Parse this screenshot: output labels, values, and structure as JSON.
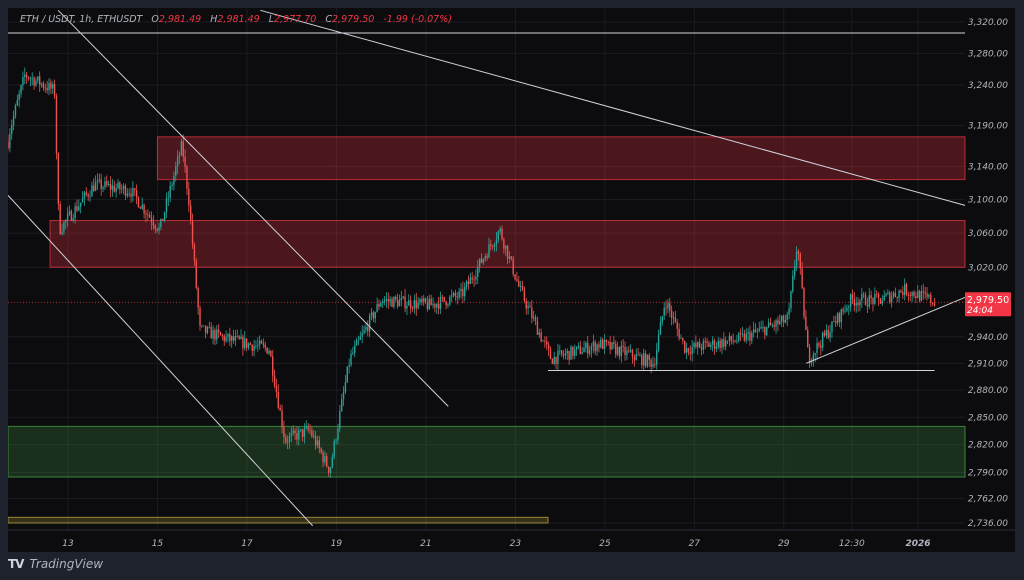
{
  "legend": {
    "symbol": "ETH / USDT, 1h, ETHUSDT",
    "open_label": "O",
    "open": "2,981.49",
    "high_label": "H",
    "high": "2,981.49",
    "low_label": "L",
    "low": "2,977.70",
    "close_label": "C",
    "close": "2,979.50",
    "change": "-1.99 (-0.07%)"
  },
  "price_badge": {
    "price": "2,979.50",
    "countdown": "24:04"
  },
  "brand": "TradingView",
  "colors": {
    "up": "#26a69a",
    "down": "#ef5350",
    "badge": "#f23645",
    "supply_zone": "#f23645",
    "demand_zone": "#4caf50",
    "drawing": "#d1d4dc"
  },
  "chart_data": {
    "type": "candlestick",
    "timeframe": "1h",
    "y_scale": "log",
    "ylim": [
      2736,
      3320
    ],
    "xlim_days_of_december": [
      11.66,
      33.05
    ],
    "current_price": 2979.5,
    "y_ticks": [
      "3,320.00",
      "3,280.00",
      "3,240.00",
      "3,190.00",
      "3,140.00",
      "3,100.00",
      "3,060.00",
      "3,020.00",
      "2,940.00",
      "2,910.00",
      "2,880.00",
      "2,850.00",
      "2,820.00",
      "2,790.00",
      "2,762.00",
      "2,736.00"
    ],
    "x_ticks": [
      {
        "label": "13",
        "day": 13
      },
      {
        "label": "15",
        "day": 15
      },
      {
        "label": "17",
        "day": 17
      },
      {
        "label": "19",
        "day": 19
      },
      {
        "label": "21",
        "day": 21
      },
      {
        "label": "23",
        "day": 23
      },
      {
        "label": "25",
        "day": 25
      },
      {
        "label": "27",
        "day": 27
      },
      {
        "label": "29",
        "day": 29
      },
      {
        "label": "12:30",
        "day": 30.52
      },
      {
        "label": "2026",
        "day": 32
      }
    ],
    "price_path": [
      [
        11.66,
        3170
      ],
      [
        11.7,
        3184
      ],
      [
        12.04,
        3253
      ],
      [
        12.7,
        3233
      ],
      [
        12.8,
        3064
      ],
      [
        13.6,
        3118
      ],
      [
        14.4,
        3111
      ],
      [
        15.05,
        3064
      ],
      [
        15.55,
        3166
      ],
      [
        15.7,
        3100
      ],
      [
        15.95,
        2948
      ],
      [
        16.6,
        2937
      ],
      [
        17.5,
        2926
      ],
      [
        17.85,
        2825
      ],
      [
        18.4,
        2836
      ],
      [
        18.85,
        2792
      ],
      [
        19.3,
        2915
      ],
      [
        20,
        2982
      ],
      [
        21.1,
        2976
      ],
      [
        21.8,
        2988
      ],
      [
        22.65,
        3064
      ],
      [
        23.1,
        2994
      ],
      [
        23.8,
        2915
      ],
      [
        24.9,
        2932
      ],
      [
        26.1,
        2910
      ],
      [
        26.35,
        2982
      ],
      [
        26.8,
        2926
      ],
      [
        28,
        2937
      ],
      [
        29.1,
        2960
      ],
      [
        29.3,
        3049
      ],
      [
        29.55,
        2915
      ],
      [
        30.5,
        2982
      ],
      [
        31.15,
        2982
      ],
      [
        31.7,
        2994
      ],
      [
        32.4,
        2979.5
      ]
    ],
    "zones": [
      {
        "kind": "supply",
        "from_day": 15.0,
        "price_top": 3176,
        "price_bottom": 3124
      },
      {
        "kind": "supply",
        "from_day": 12.6,
        "price_top": 3075,
        "price_bottom": 3020
      },
      {
        "kind": "demand",
        "from_day": 11.66,
        "price_top": 2840,
        "price_bottom": 2785
      },
      {
        "kind": "demand-edge",
        "from_day": 11.66,
        "to_day": 23.73,
        "price_top": 2742,
        "price_bottom": 2736
      }
    ],
    "trendlines": [
      {
        "from": [
          12.78,
          3335
        ],
        "to": [
          21.5,
          2862
        ]
      },
      {
        "from": [
          11.66,
          3105
        ],
        "to": [
          18.47,
          2733
        ]
      },
      {
        "from": [
          17.3,
          3335
        ],
        "to": [
          33.05,
          3093
        ]
      },
      {
        "from": [
          11.66,
          3306
        ],
        "to": [
          33.05,
          3306
        ]
      },
      {
        "from": [
          29.5,
          2910
        ],
        "to": [
          33.05,
          2985
        ]
      },
      {
        "from": [
          23.73,
          2902
        ],
        "to": [
          32.37,
          2902
        ]
      }
    ]
  }
}
